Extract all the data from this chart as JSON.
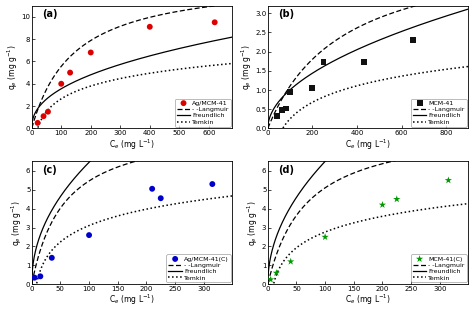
{
  "panels": [
    {
      "label": "(a)",
      "scatter_x": [
        20,
        40,
        55,
        100,
        130,
        200,
        400,
        620
      ],
      "scatter_y": [
        0.5,
        1.1,
        1.5,
        4.0,
        5.0,
        6.8,
        9.1,
        9.5
      ],
      "scatter_color": "#dd0000",
      "scatter_marker": "o",
      "scatter_size": 18,
      "legend_label": "Ag/MCM-41",
      "xlim": [
        0,
        680
      ],
      "ylim": [
        0,
        11
      ],
      "xlabel": "C$_e$ (mg L$^{-1}$)",
      "ylabel": "q$_e$ (mg g$^{-1}$)",
      "xticks": [
        0,
        100,
        200,
        300,
        400,
        500,
        600
      ],
      "yticks": [
        0,
        2,
        4,
        6,
        8,
        10
      ],
      "langmuir": {
        "qm": 13.5,
        "KL": 0.007
      },
      "freundlich": {
        "Kf": 0.48,
        "n": 2.3
      },
      "temkin": {
        "A": 0.05,
        "B": 1.65
      }
    },
    {
      "label": "(b)",
      "scatter_x": [
        40,
        65,
        80,
        100,
        200,
        250,
        430,
        650
      ],
      "scatter_y": [
        0.32,
        0.48,
        0.52,
        0.95,
        1.05,
        1.72,
        1.72,
        2.3
      ],
      "scatter_color": "#111111",
      "scatter_marker": "s",
      "scatter_size": 18,
      "legend_label": "MCM-41",
      "xlim": [
        0,
        900
      ],
      "ylim": [
        0,
        3.2
      ],
      "xlabel": "C$_e$ (mg L$^{-1}$)",
      "ylabel": "q$_e$ (mg g$^{-1}$)",
      "xticks": [
        0,
        200,
        400,
        600,
        800
      ],
      "yticks": [
        0.0,
        0.5,
        1.0,
        1.5,
        2.0,
        2.5,
        3.0
      ],
      "langmuir": {
        "qm": 4.8,
        "KL": 0.003
      },
      "freundlich": {
        "Kf": 0.095,
        "n": 1.95
      },
      "temkin": {
        "A": 0.015,
        "B": 0.62
      }
    },
    {
      "label": "(c)",
      "scatter_x": [
        5,
        15,
        35,
        100,
        210,
        225,
        315
      ],
      "scatter_y": [
        0.35,
        0.42,
        1.4,
        2.6,
        5.05,
        4.55,
        5.3
      ],
      "scatter_color": "#0000cc",
      "scatter_marker": "o",
      "scatter_size": 18,
      "legend_label": "Ag/MCM-41(C)",
      "xlim": [
        0,
        350
      ],
      "ylim": [
        0,
        6.5
      ],
      "xlabel": "C$_e$ (mg L$^{-1}$)",
      "ylabel": "q$_e$ (mg g$^{-1}$)",
      "xticks": [
        0,
        50,
        100,
        150,
        200,
        250,
        300
      ],
      "yticks": [
        0,
        1,
        2,
        3,
        4,
        5,
        6
      ],
      "langmuir": {
        "qm": 8.5,
        "KL": 0.018
      },
      "freundlich": {
        "Kf": 0.72,
        "n": 2.1
      },
      "temkin": {
        "A": 0.12,
        "B": 1.25
      }
    },
    {
      "label": "(d)",
      "scatter_x": [
        5,
        15,
        40,
        100,
        200,
        225,
        315
      ],
      "scatter_y": [
        0.25,
        0.6,
        1.2,
        2.5,
        4.2,
        4.5,
        5.5
      ],
      "scatter_color": "#009900",
      "scatter_marker": "*",
      "scatter_size": 30,
      "legend_label": "MCM-41(C)",
      "xlim": [
        0,
        350
      ],
      "ylim": [
        0,
        6.5
      ],
      "xlabel": "C$_e$ (mg L$^{-1}$)",
      "ylabel": "q$_e$ (mg g$^{-1}$)",
      "xticks": [
        0,
        50,
        100,
        150,
        200,
        250,
        300
      ],
      "yticks": [
        0,
        1,
        2,
        3,
        4,
        5,
        6
      ],
      "langmuir": {
        "qm": 8.5,
        "KL": 0.015
      },
      "freundlich": {
        "Kf": 0.65,
        "n": 2.0
      },
      "temkin": {
        "A": 0.1,
        "B": 1.2
      }
    }
  ],
  "fig_background": "#ffffff",
  "line_color": "#000000",
  "line_width": 0.9,
  "tick_fontsize": 5.0,
  "label_fontsize": 5.5,
  "legend_fontsize": 4.5,
  "panel_label_fontsize": 7.0
}
